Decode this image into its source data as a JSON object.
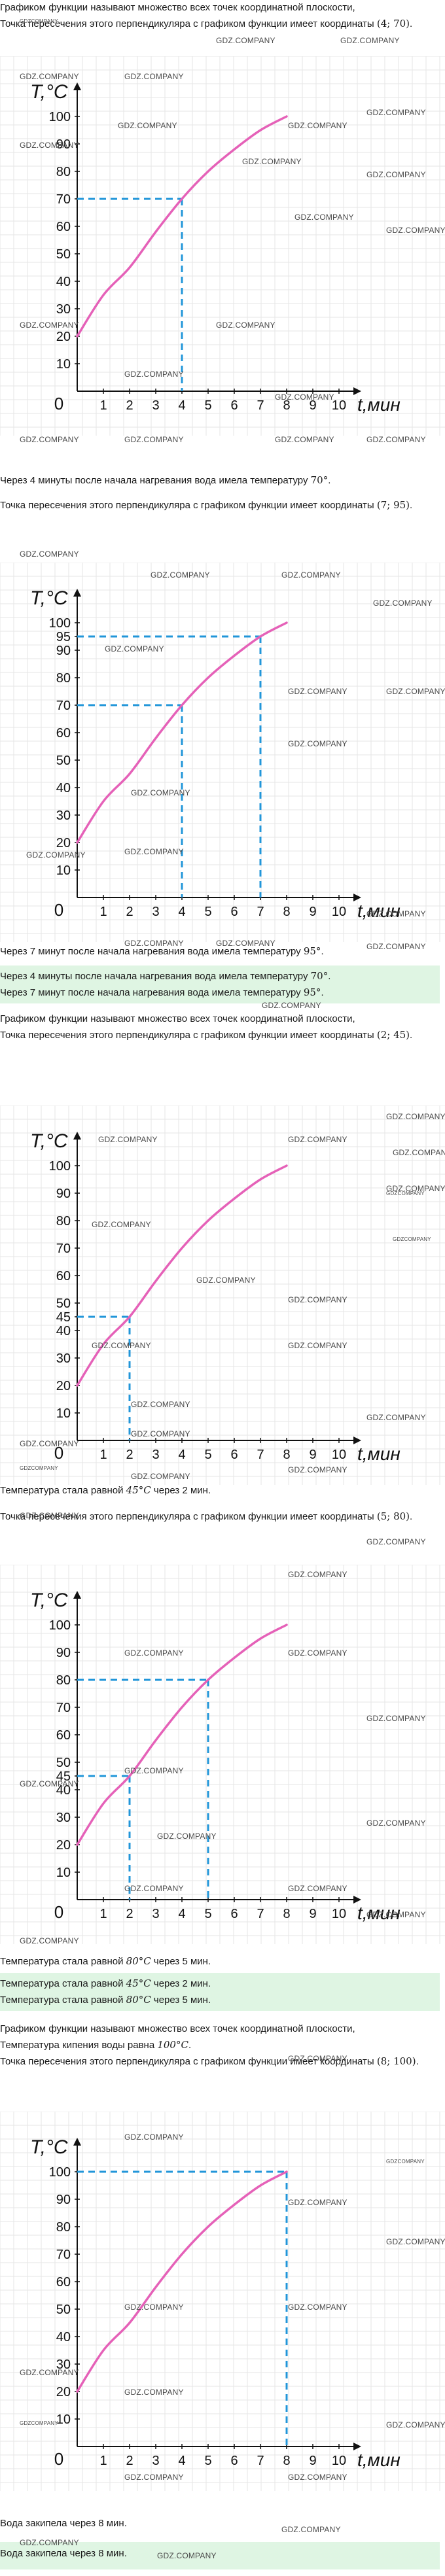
{
  "watermark": "GDZ.COMPANY",
  "watermark_small": "GDZCOMPANY",
  "blocks": [
    {
      "intro": [
        "Графиком функции называют множество всех точек координатной плоскости, ",
        "Точка пересечения этого перпендикуляра с графиком функции имеет координаты ",
        "(4; 70)",
        "."
      ],
      "result": [
        "Через 4 минуты после начала нагревания вода имела температуру ",
        "70°",
        "."
      ]
    },
    {
      "intro": [
        "Точка пересечения этого перпендикуляра с графиком функции имеет координаты ",
        "(7; 95)",
        "."
      ],
      "result": [
        "Через 7 минут после начала нагревания вода имела температуру ",
        "95°",
        "."
      ]
    },
    {
      "summary": [
        [
          "Через 4 минуты после начала нагревания вода имела температуру ",
          "70°",
          "."
        ],
        [
          "Через 7 минут после начала нагревания вода имела температуру ",
          "95°",
          "."
        ]
      ]
    },
    {
      "intro": [
        "Графиком функции называют множество всех точек координатной плоскости, ",
        "Точка пересечения этого перпендикуляра с графиком функции имеет координаты ",
        "(2; 45)",
        "."
      ],
      "result": [
        "Температура стала равной ",
        "45°C",
        " через 2 мин."
      ]
    },
    {
      "intro": [
        "Точка пересечения этого перпендикуляра с графиком функции имеет координаты ",
        "(5; 80)",
        "."
      ],
      "result": [
        "Температура стала равной ",
        "80°C",
        " через 5 мин."
      ]
    },
    {
      "summary": [
        [
          "Температура стала равной ",
          "45°C",
          " через 2 мин."
        ],
        [
          "Температура стала равной ",
          "80°C",
          " через 5 мин."
        ]
      ]
    },
    {
      "intro": [
        "Графиком функции называют множество всех точек координатной плоскости, ",
        "Температура кипения воды равна ",
        "100°C",
        ".",
        "Точка пересечения этого перпендикуляра с графиком функции имеет координаты ",
        "(8; 100)",
        "."
      ],
      "result": [
        "Вода закипела через 8 мин."
      ],
      "summary": [
        [
          "Вода закипела через 8 мин."
        ]
      ]
    }
  ],
  "chart_data": [
    {
      "type": "line",
      "ylabel": "T,°C",
      "xlabel": "t,мин",
      "x_ticks": [
        "0",
        "1",
        "2",
        "3",
        "4",
        "5",
        "6",
        "7",
        "8",
        "9",
        "10"
      ],
      "y_ticks": [
        "10",
        "20",
        "30",
        "40",
        "50",
        "60",
        "70",
        "80",
        "90",
        "100"
      ],
      "xlim": [
        0,
        10.5
      ],
      "ylim": [
        0,
        110
      ],
      "grid": true,
      "line_color": "#e561b8",
      "guide_color": "#2196d9",
      "series": [
        {
          "values": [
            [
              0,
              20
            ],
            [
              1,
              35
            ],
            [
              2,
              45
            ],
            [
              3,
              58
            ],
            [
              4,
              70
            ],
            [
              5,
              80
            ],
            [
              6,
              88
            ],
            [
              7,
              95
            ],
            [
              8,
              100
            ]
          ]
        }
      ],
      "guides": [
        {
          "x": 4,
          "y": 70
        }
      ],
      "y_ticks_labeled": [
        "10",
        "20",
        "30",
        "40",
        "50",
        "60",
        "70",
        "80",
        "90",
        "100"
      ]
    },
    {
      "type": "line",
      "ylabel": "T,°C",
      "xlabel": "t,мин",
      "x_ticks": [
        "0",
        "1",
        "2",
        "3",
        "4",
        "5",
        "6",
        "7",
        "8",
        "9",
        "10"
      ],
      "y_ticks": [
        "10",
        "20",
        "30",
        "40",
        "50",
        "60",
        "70",
        "80",
        "90",
        "95",
        "100"
      ],
      "xlim": [
        0,
        10.5
      ],
      "ylim": [
        0,
        110
      ],
      "grid": true,
      "line_color": "#e561b8",
      "guide_color": "#2196d9",
      "series": [
        {
          "values": [
            [
              0,
              20
            ],
            [
              1,
              35
            ],
            [
              2,
              45
            ],
            [
              3,
              58
            ],
            [
              4,
              70
            ],
            [
              5,
              80
            ],
            [
              6,
              88
            ],
            [
              7,
              95
            ],
            [
              8,
              100
            ]
          ]
        }
      ],
      "guides": [
        {
          "x": 4,
          "y": 70
        },
        {
          "x": 7,
          "y": 95
        }
      ]
    },
    {
      "type": "line",
      "ylabel": "T,°C",
      "xlabel": "t,мин",
      "x_ticks": [
        "0",
        "1",
        "2",
        "3",
        "4",
        "5",
        "6",
        "7",
        "8",
        "9",
        "10"
      ],
      "y_ticks": [
        "10",
        "20",
        "30",
        "40",
        "45",
        "50",
        "60",
        "70",
        "80",
        "90",
        "100"
      ],
      "xlim": [
        0,
        10.5
      ],
      "ylim": [
        0,
        110
      ],
      "grid": true,
      "line_color": "#e561b8",
      "guide_color": "#2196d9",
      "series": [
        {
          "values": [
            [
              0,
              20
            ],
            [
              1,
              35
            ],
            [
              2,
              45
            ],
            [
              3,
              58
            ],
            [
              4,
              70
            ],
            [
              5,
              80
            ],
            [
              6,
              88
            ],
            [
              7,
              95
            ],
            [
              8,
              100
            ]
          ]
        }
      ],
      "guides": [
        {
          "x": 2,
          "y": 45
        }
      ]
    },
    {
      "type": "line",
      "ylabel": "T,°C",
      "xlabel": "t,мин",
      "x_ticks": [
        "0",
        "1",
        "2",
        "3",
        "4",
        "5",
        "6",
        "7",
        "8",
        "9",
        "10"
      ],
      "y_ticks": [
        "10",
        "20",
        "30",
        "40",
        "45",
        "50",
        "60",
        "70",
        "80",
        "90",
        "100"
      ],
      "xlim": [
        0,
        10.5
      ],
      "ylim": [
        0,
        110
      ],
      "grid": true,
      "line_color": "#e561b8",
      "guide_color": "#2196d9",
      "series": [
        {
          "values": [
            [
              0,
              20
            ],
            [
              1,
              35
            ],
            [
              2,
              45
            ],
            [
              3,
              58
            ],
            [
              4,
              70
            ],
            [
              5,
              80
            ],
            [
              6,
              88
            ],
            [
              7,
              95
            ],
            [
              8,
              100
            ]
          ]
        }
      ],
      "guides": [
        {
          "x": 2,
          "y": 45
        },
        {
          "x": 5,
          "y": 80
        }
      ]
    },
    {
      "type": "line",
      "ylabel": "T,°C",
      "xlabel": "t,мин",
      "x_ticks": [
        "0",
        "1",
        "2",
        "3",
        "4",
        "5",
        "6",
        "7",
        "8",
        "9",
        "10"
      ],
      "y_ticks": [
        "10",
        "20",
        "30",
        "40",
        "50",
        "60",
        "70",
        "80",
        "90",
        "100"
      ],
      "xlim": [
        0,
        10.5
      ],
      "ylim": [
        0,
        110
      ],
      "grid": true,
      "line_color": "#e561b8",
      "guide_color": "#2196d9",
      "series": [
        {
          "values": [
            [
              0,
              20
            ],
            [
              1,
              35
            ],
            [
              2,
              45
            ],
            [
              3,
              58
            ],
            [
              4,
              70
            ],
            [
              5,
              80
            ],
            [
              6,
              88
            ],
            [
              7,
              95
            ],
            [
              8,
              100
            ]
          ]
        }
      ],
      "guides": [
        {
          "x": 8,
          "y": 100
        }
      ]
    }
  ]
}
